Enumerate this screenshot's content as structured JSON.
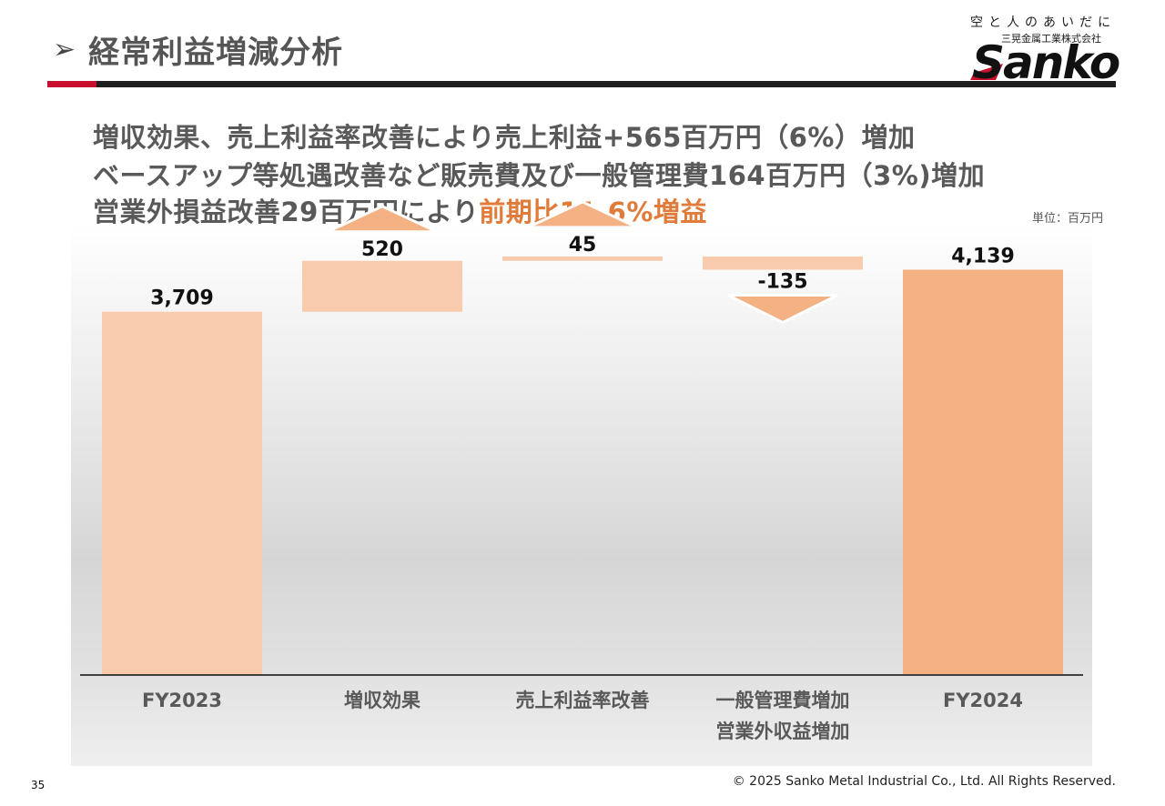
{
  "header": {
    "bullet": "➢",
    "title": "経常利益増減分析"
  },
  "logo": {
    "tagline": "空と人のあいだに",
    "company": "三晃金属工業株式会社",
    "brand": "Sanko"
  },
  "headline": {
    "line1": "増収効果、売上利益率改善により売上利益+565百万円（6%）増加",
    "line2": "ベースアップ等処遇改善など販売費及び一般管理費164百万円（3%)増加",
    "line3_prefix": "営業外損益改善29百万円により",
    "line3_accent": "前期比11.6%増益"
  },
  "unit_label": "単位：百万円",
  "chart_data": {
    "type": "bar",
    "subtype": "waterfall",
    "categories": [
      "FY2023",
      "増収効果",
      "売上利益率改善",
      "一般管理費増加\n営業外収益増加",
      "FY2024"
    ],
    "category_lines": [
      [
        "FY2023"
      ],
      [
        "増収効果"
      ],
      [
        "売上利益率改善"
      ],
      [
        "一般管理費増加",
        "営業外収益増加"
      ],
      [
        "FY2024"
      ]
    ],
    "steps": [
      {
        "kind": "total",
        "value": 3709,
        "label": "3,709"
      },
      {
        "kind": "delta",
        "value": 520,
        "label": "520"
      },
      {
        "kind": "delta",
        "value": 45,
        "label": "45"
      },
      {
        "kind": "delta",
        "value": -135,
        "label": "-135"
      },
      {
        "kind": "total",
        "value": 4139,
        "label": "4,139"
      }
    ],
    "ylim": [
      0,
      5100
    ],
    "colors": {
      "total": "#f8cbad",
      "delta": "#f8cbad",
      "final": "#f4b183",
      "arrow": "#f4b183",
      "axis": "#404040"
    },
    "grid": false,
    "legend": "none"
  },
  "footer": {
    "page_number": "35",
    "copyright": "© 2025 Sanko Metal Industrial Co., Ltd. All Rights Reserved."
  }
}
